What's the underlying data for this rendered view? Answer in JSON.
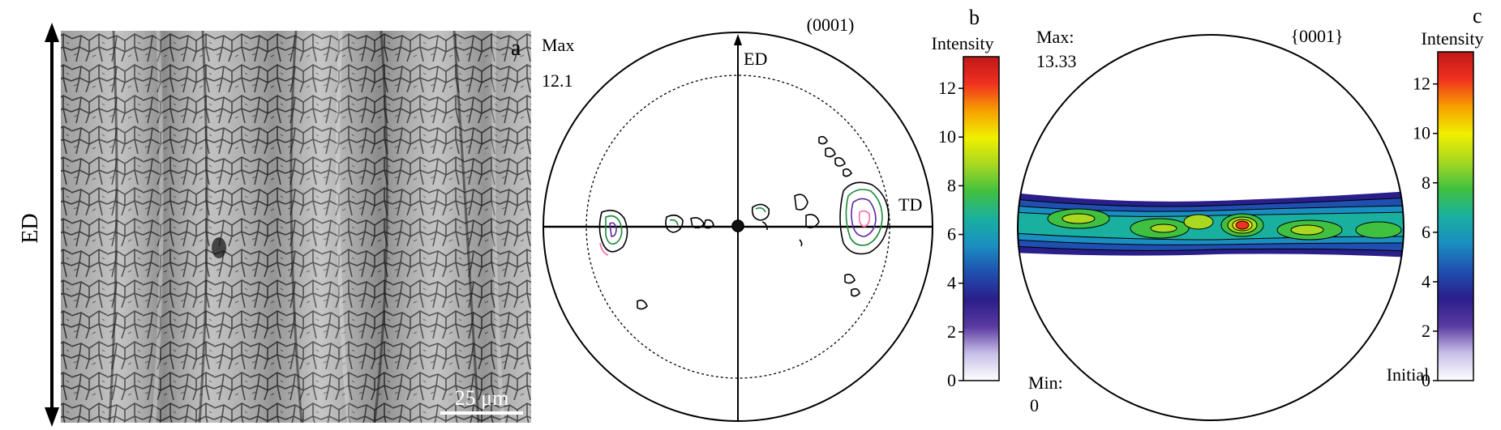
{
  "panel_a": {
    "letter": "a",
    "direction_label": "ED",
    "scale_bar_label": "25 μm"
  },
  "panel_b": {
    "letter": "b",
    "title": "(0001)",
    "max_label": "Max",
    "max_value": "12.1",
    "axis_ed": "ED",
    "axis_td": "TD",
    "colorbar": {
      "title": "Intensity",
      "ticks": [
        "0",
        "2",
        "4",
        "6",
        "8",
        "10",
        "12"
      ],
      "range": [
        0,
        13.3
      ]
    },
    "contour_colors": [
      "#1a8a3a",
      "#5a2aa0",
      "#000000",
      "#ff66aa"
    ]
  },
  "panel_c": {
    "letter": "c",
    "title": "{0001}",
    "max_label": "Max:",
    "max_value": "13.33",
    "min_label": "Min:",
    "min_value": "0",
    "state_label": "Initial",
    "colorbar": {
      "title": "Intensity",
      "ticks": [
        "0",
        "2",
        "4",
        "6",
        "8",
        "10",
        "12"
      ],
      "range": [
        0,
        13.3
      ]
    }
  },
  "colormap": [
    "#ffffff",
    "#c8c0e8",
    "#5a3aa0",
    "#2a1e8a",
    "#1f4fb0",
    "#1a8ec0",
    "#1ab0a0",
    "#40c040",
    "#a8d820",
    "#f0f000",
    "#f8a000",
    "#f03020",
    "#c01818"
  ]
}
